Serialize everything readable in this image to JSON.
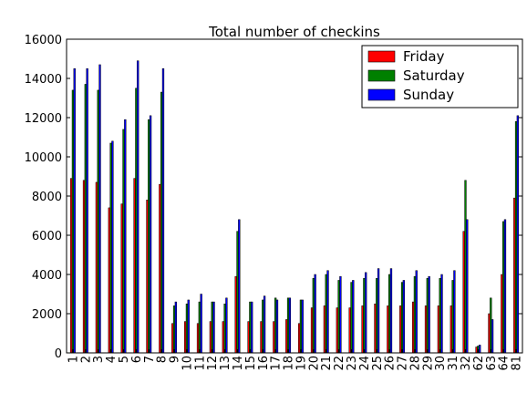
{
  "chart_data": {
    "type": "bar",
    "title": "Total number of checkins",
    "xlabel": "",
    "ylabel": "",
    "ylim": [
      0,
      16000
    ],
    "yticks": [
      0,
      2000,
      4000,
      6000,
      8000,
      10000,
      12000,
      14000,
      16000
    ],
    "grid": false,
    "legend_position": "top-right",
    "categories": [
      "1",
      "2",
      "3",
      "4",
      "5",
      "6",
      "7",
      "8",
      "9",
      "10",
      "11",
      "12",
      "13",
      "14",
      "15",
      "16",
      "17",
      "18",
      "19",
      "20",
      "21",
      "22",
      "23",
      "24",
      "25",
      "26",
      "27",
      "28",
      "29",
      "30",
      "31",
      "32",
      "62",
      "63",
      "64",
      "81"
    ],
    "series": [
      {
        "name": "Friday",
        "color": "#ff0000",
        "values": [
          8900,
          8800,
          8700,
          7400,
          7600,
          8900,
          7800,
          8600,
          1500,
          1600,
          1500,
          1600,
          1600,
          3900,
          1600,
          1600,
          1600,
          1700,
          1500,
          2300,
          2400,
          2300,
          2300,
          2400,
          2500,
          2400,
          2400,
          2600,
          2400,
          2400,
          2400,
          6200,
          300,
          2000,
          4000,
          7900
        ]
      },
      {
        "name": "Saturday",
        "color": "#008000",
        "values": [
          13400,
          13700,
          13400,
          10700,
          11400,
          13500,
          11900,
          13300,
          2400,
          2500,
          2600,
          2600,
          2500,
          6200,
          2600,
          2700,
          2800,
          2800,
          2700,
          3800,
          4000,
          3700,
          3600,
          3800,
          3800,
          4000,
          3600,
          3900,
          3800,
          3800,
          3700,
          8800,
          350,
          2800,
          6700,
          11800
        ]
      },
      {
        "name": "Sunday",
        "color": "#0000ff",
        "values": [
          14500,
          14500,
          14700,
          10800,
          11900,
          14900,
          12100,
          14500,
          2600,
          2700,
          3000,
          2600,
          2800,
          6800,
          2600,
          2900,
          2700,
          2800,
          2700,
          4000,
          4200,
          3900,
          3700,
          4100,
          4300,
          4300,
          3700,
          4200,
          3900,
          4000,
          4200,
          6800,
          400,
          1700,
          6800,
          12100
        ]
      }
    ]
  }
}
